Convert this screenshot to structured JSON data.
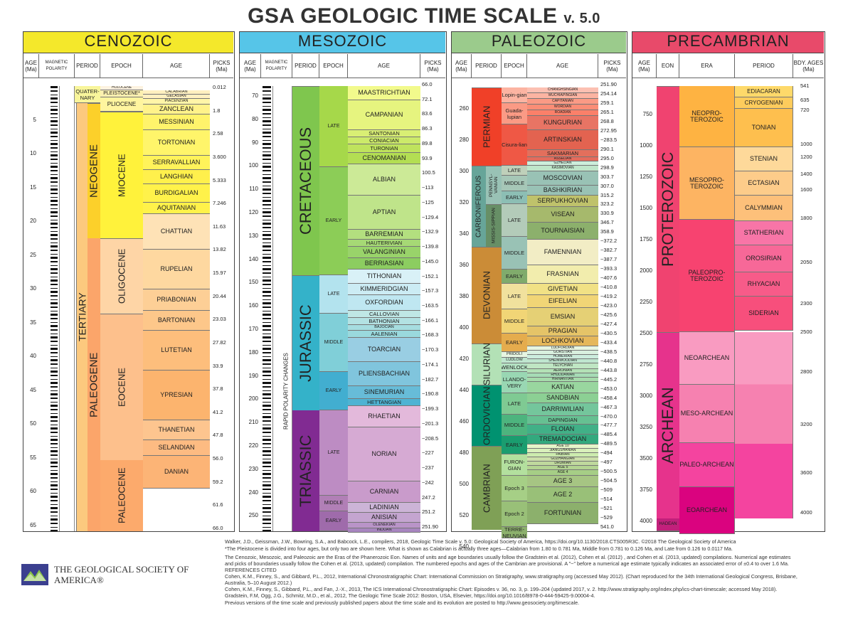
{
  "title": "GSA GEOLOGIC TIME SCALE",
  "version": "v. 5.0",
  "panels": {
    "cenozoic": {
      "name": "CENOZOIC",
      "color": "#f4e82b"
    },
    "mesozoic": {
      "name": "MESOZOIC",
      "color": "#56c5e8"
    },
    "paleozoic": {
      "name": "PALEOZOIC",
      "color": "#9bcb8c"
    },
    "precambrian": {
      "name": "PRECAMBRIAN",
      "color": "#e84a6a"
    }
  },
  "headers": {
    "age": "AGE (Ma)",
    "mag": "MAGNETIC POLARITY",
    "period": "PERIOD",
    "epoch": "EPOCH",
    "agecol": "AGE",
    "picks": "PICKS (Ma)",
    "eon": "EON",
    "era": "ERA",
    "bdy": "BDY. AGES (Ma)",
    "hist": "HIST.",
    "anom": "ANOM.",
    "chron": "CHRON."
  },
  "cenozoic": {
    "ticks": [
      "5",
      "10",
      "15",
      "20",
      "25",
      "30",
      "35",
      "40",
      "45",
      "50",
      "55",
      "60",
      "65"
    ],
    "periods": [
      "QUATER-NARY",
      "NEOGENE",
      "PALEOGENE"
    ],
    "tertiary": "TERTIARY",
    "epochs": [
      "HOLOCENE",
      "PLEISTOCENE*",
      "PLIOCENE",
      "MIOCENE",
      "OLIGOCENE",
      "EOCENE",
      "PALEOCENE"
    ],
    "ages": [
      "CALABRIAN",
      "GELASIAN",
      "PIACENZIAN",
      "ZANCLEAN",
      "MESSINIAN",
      "TORTONIAN",
      "SERRAVALLIAN",
      "LANGHIAN",
      "BURDIGALIAN",
      "AQUITANIAN",
      "CHATTIAN",
      "RUPELIAN",
      "PRIABONIAN",
      "BARTONIAN",
      "LUTETIAN",
      "YPRESIAN",
      "THANETIAN",
      "SELANDIAN",
      "DANIAN"
    ],
    "picks": [
      "0.012",
      "1.8",
      "2.58",
      "3.600",
      "5.333",
      "7.246",
      "11.63",
      "13.82",
      "15.97",
      "20.44",
      "23.03",
      "27.82",
      "33.9",
      "37.8",
      "41.2",
      "47.8",
      "56.0",
      "59.2",
      "61.6",
      "66.0"
    ]
  },
  "mesozoic": {
    "ticks": [
      "70",
      "80",
      "90",
      "100",
      "110",
      "120",
      "130",
      "140",
      "150",
      "160",
      "170",
      "180",
      "190",
      "200",
      "210",
      "220",
      "230",
      "240",
      "250"
    ],
    "periods": [
      "CRETACEOUS",
      "JURASSIC",
      "TRIASSIC"
    ],
    "rapid": "RAPID POLARITY CHANGES",
    "epochs": [
      "LATE",
      "EARLY",
      "LATE",
      "MIDDLE",
      "EARLY",
      "LATE",
      "MIDDLE",
      "EARLY"
    ],
    "ages": [
      "MAASTRICHTIAN",
      "CAMPANIAN",
      "SANTONIAN",
      "CONIACIAN",
      "TURONIAN",
      "CENOMANIAN",
      "ALBIAN",
      "APTIAN",
      "BARREMIAN",
      "HAUTERIVIAN",
      "VALANGINIAN",
      "BERRIASIAN",
      "TITHONIAN",
      "KIMMERIDGIAN",
      "OXFORDIAN",
      "CALLOVIAN",
      "BATHONIAN",
      "BAJOCIAN",
      "AALENIAN",
      "TOARCIAN",
      "PLIENSBACHIAN",
      "SINEMURIAN",
      "HETTANGIAN",
      "RHAETIAN",
      "NORIAN",
      "CARNIAN",
      "LADINIAN",
      "ANISIAN",
      "OLENEKIAN",
      "INDUAN"
    ],
    "picks": [
      "66.0",
      "72.1",
      "83.6",
      "86.3",
      "89.8",
      "93.9",
      "100.5",
      "~113",
      "~125",
      "~129.4",
      "~132.9",
      "~139.8",
      "~145.0",
      "~152.1",
      "~157.3",
      "~163.5",
      "~166.1",
      "~168.3",
      "~170.3",
      "~174.1",
      "~182.7",
      "~190.8",
      "~199.3",
      "~201.3",
      "~208.5",
      "~227",
      "~237",
      "~242",
      "247.2",
      "251.2",
      "251.90"
    ]
  },
  "paleozoic": {
    "ticks": [
      "260",
      "280",
      "300",
      "320",
      "340",
      "360",
      "380",
      "400",
      "420",
      "440",
      "460",
      "480",
      "500",
      "520",
      "540"
    ],
    "periods": [
      "PERMIAN",
      "CARBONIFEROUS",
      "DEVONIAN",
      "SILURIAN",
      "ORDOVICIAN",
      "CAMBRIAN"
    ],
    "subperiods": [
      "PENNSYL-VANIAN",
      "MISSIS-SIPPIAN"
    ],
    "epochs": [
      "Lopin-gian",
      "Guada-lupian",
      "Cisura-lian",
      "LATE",
      "MIDDLE",
      "EARLY",
      "LATE",
      "MIDDLE",
      "EARLY",
      "LATE",
      "MIDDLE",
      "EARLY",
      "PRIDOLI",
      "LUDLOW",
      "WENLOCK",
      "LLANDO-VERY",
      "LATE",
      "MIDDLE",
      "EARLY",
      "FURON-GIAN",
      "Epoch 3",
      "Epoch 2",
      "TERRE-NEUVIAN"
    ],
    "ages": [
      "CHANGHSINGIAN",
      "WUCHIAPINGIAN",
      "CAPITANIAN",
      "WORDIAN",
      "ROADIAN",
      "KUNGURIAN",
      "ARTINSKIAN",
      "SAKMARIAN",
      "ASSELIAN",
      "GZHELIAN",
      "KASIMOVIAN",
      "MOSCOVIAN",
      "BASHKIRIAN",
      "SERPUKHOVIAN",
      "VISEAN",
      "TOURNAISIAN",
      "FAMENNIAN",
      "FRASNIAN",
      "GIVETIAN",
      "EIFELIAN",
      "EMSIAN",
      "PRAGIAN",
      "LOCHKOVIAN",
      "LUDFORDIAN",
      "GORSTIAN",
      "HOMERIAN",
      "SHEINWOODIAN",
      "TELYCHIAN",
      "AERONIAN",
      "RHUDDANIAN",
      "HIRNANTIAN",
      "KATIAN",
      "SANDBIAN",
      "DARRIWILIAN",
      "DAPINGIAN",
      "FLOIAN",
      "TREMADOCIAN",
      "AGE 10",
      "JIANGSHANIAN",
      "PAIBIAN",
      "GUZHANGIAN",
      "DRUMIAN",
      "AGE 5",
      "AGE 4",
      "AGE 3",
      "AGE 2",
      "FORTUNIAN"
    ],
    "picks": [
      "251.90",
      "254.14",
      "259.1",
      "265.1",
      "268.8",
      "272.95",
      "~283.5",
      "290.1",
      "295.0",
      "298.9",
      "303.7",
      "307.0",
      "315.2",
      "323.2",
      "330.9",
      "346.7",
      "358.9",
      "~372.2",
      "~382.7",
      "~387.7",
      "~393.3",
      "~407.6",
      "~410.8",
      "~419.2",
      "~423.0",
      "~425.6",
      "~427.4",
      "~430.5",
      "~433.4",
      "~438.5",
      "~440.8",
      "~443.8",
      "~445.2",
      "~453.0",
      "~458.4",
      "~467.3",
      "~470.0",
      "~477.7",
      "~485.4",
      "~489.5",
      "~494",
      "~497",
      "~500.5",
      "~504.5",
      "~509",
      "~514",
      "~521",
      "~529",
      "541.0"
    ]
  },
  "precambrian": {
    "ticks": [
      "750",
      "1000",
      "1250",
      "1500",
      "1750",
      "2000",
      "2250",
      "2500",
      "2750",
      "3000",
      "3250",
      "3500",
      "3750",
      "4000"
    ],
    "eons": [
      "PROTEROZOIC",
      "ARCHEAN",
      "HADEAN"
    ],
    "eras": [
      "NEOPRO-TEROZOIC",
      "MESOPRO-TEROZOIC",
      "PALEOPRO-TEROZOIC",
      "NEOARCHEAN",
      "MESO-ARCHEAN",
      "PALEO-ARCHEAN",
      "EOARCHEAN"
    ],
    "periods": [
      "EDIACARAN",
      "CRYOGENIAN",
      "TONIAN",
      "STENIAN",
      "ECTASIAN",
      "CALYMMIAN",
      "STATHERIAN",
      "OROSIRIAN",
      "RHYACIAN",
      "SIDERIAN"
    ],
    "bdy": [
      "541",
      "635",
      "720",
      "1000",
      "1200",
      "1400",
      "1600",
      "1800",
      "2050",
      "2300",
      "2500",
      "2800",
      "3200",
      "3600",
      "4000"
    ]
  },
  "footer": {
    "logo": "THE GEOLOGICAL SOCIETY OF AMERICA®",
    "lines": [
      "Walker, J.D., Geissman, J.W., Bowring, S.A., and Babcock, L.E., compilers, 2018, Geologic Time Scale v. 5.0: Geological Society of America, https://doi.org/10.1130/2018.CTS005R3C. ©2018 The Geological Society of America",
      "*The Pleistocene is divided into four ages, but only two are shown here. What is shown as Calabrian is actually three ages—Calabrian from 1.80 to 0.781 Ma, Middle from 0.781 to 0.126 Ma, and Late from 0.126 to 0.0117 Ma.",
      "The Cenozoic, Mesozoic, and Paleozoic are the Eras of the Phanerozoic Eon. Names of units and age boundaries usually follow the Gradstein et al. (2012), Cohen et al. (2012) , and Cohen et al. (2013, updated) compilations. Numerical age estimates",
      "and picks of boundaries usually follow the Cohen et al. (2013, updated) compilation. The numbered epochs and ages of the Cambrian are provisional. A \"~\" before a numerical age estimate typically indicates an associated error of ±0.4 to over 1.6 Ma.",
      "REFERENCES CITED",
      "Cohen, K.M., Finney, S., and Gibbard, P.L., 2012, International Chronostratigraphic Chart: International Commission on Stratigraphy, www.stratigraphy.org (accessed May 2012). (Chart reproduced for the 34th International Geological Congress, Brisbane,",
      "   Australia, 5–10 August 2012.)",
      "Cohen, K.M., Finney, S., Gibbard, P.L., and Fan, J.-X., 2013, The ICS International Chronostratigraphic Chart: Episodes v. 36, no. 3, p. 199–204 (updated 2017, v. 2. http://www.stratigraphy.org/index.php/ics-chart-timescale; accessed May 2018).",
      "Gradstein, F.M, Ogg, J.G., Schmitz, M.D., et al., 2012, The Geologic Time Scale 2012: Boston, USA, Elsevier, https://doi.org/10.1016/B978-0-444-59425-9.00004-4.",
      "Previous versions of the time scale and previously published papers about the time scale and its evolution are posted to http://www.geosociety.org/timescale."
    ]
  }
}
